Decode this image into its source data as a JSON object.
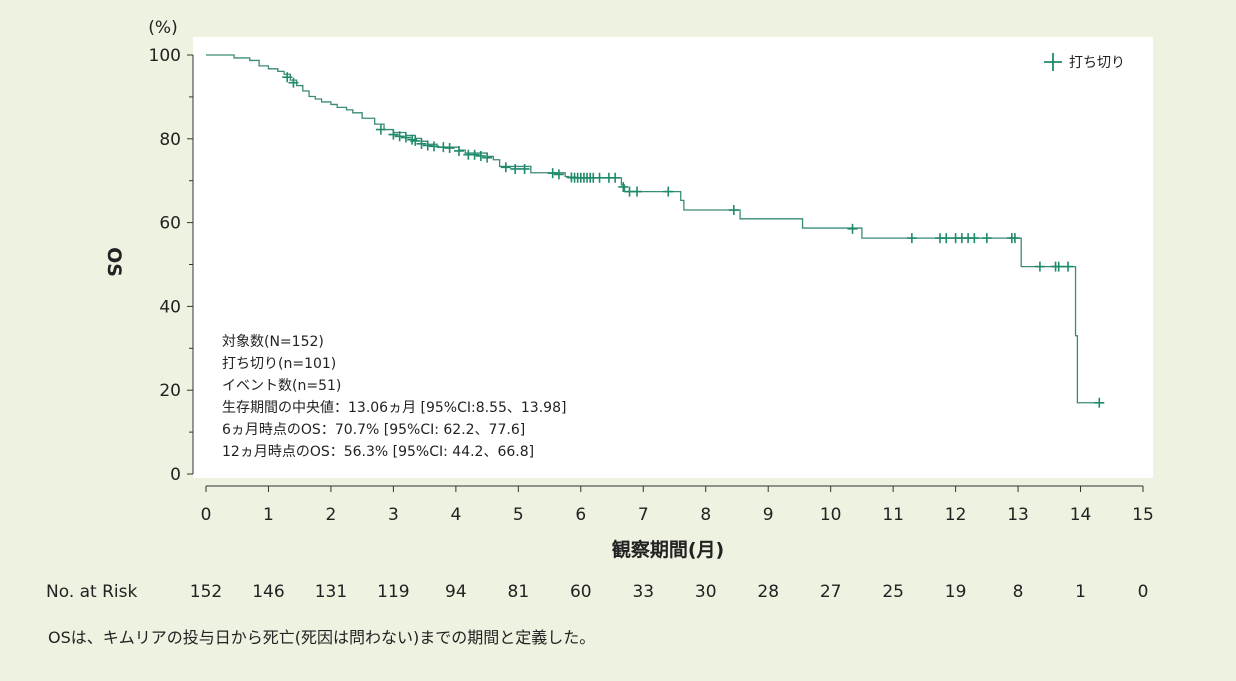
{
  "chart_data": {
    "type": "line",
    "ylabel": "OS",
    "y_unit": "(%)",
    "xlabel": "観察期間(月)",
    "xlim": [
      0,
      15
    ],
    "ylim": [
      0,
      100
    ],
    "x_ticks": [
      0,
      1,
      2,
      3,
      4,
      5,
      6,
      7,
      8,
      9,
      10,
      11,
      12,
      13,
      14,
      15
    ],
    "y_ticks": [
      0,
      20,
      40,
      60,
      80,
      100
    ],
    "legend": {
      "label": "打ち切り",
      "position": "top-right"
    },
    "series_color": "#3a8a78",
    "censor_color": "#1e8a6c",
    "series": [
      {
        "steps": [
          [
            0,
            100
          ],
          [
            0.45,
            99.3
          ],
          [
            0.7,
            98.7
          ],
          [
            0.85,
            97.4
          ],
          [
            1.0,
            96.7
          ],
          [
            1.15,
            96.1
          ],
          [
            1.25,
            95.4
          ],
          [
            1.35,
            94.0
          ],
          [
            1.45,
            92.7
          ],
          [
            1.55,
            91.4
          ],
          [
            1.65,
            90.1
          ],
          [
            1.75,
            89.5
          ],
          [
            1.85,
            88.8
          ],
          [
            2.0,
            88.2
          ],
          [
            2.1,
            87.5
          ],
          [
            2.25,
            86.9
          ],
          [
            2.35,
            86.2
          ],
          [
            2.5,
            84.9
          ],
          [
            2.7,
            83.5
          ],
          [
            2.85,
            82.2
          ],
          [
            3.0,
            81.5
          ],
          [
            3.2,
            80.8
          ],
          [
            3.35,
            80.1
          ],
          [
            3.45,
            79.4
          ],
          [
            3.55,
            78.7
          ],
          [
            3.7,
            78.0
          ],
          [
            4.05,
            77.3
          ],
          [
            4.15,
            76.6
          ],
          [
            4.5,
            75.8
          ],
          [
            4.6,
            75.0
          ],
          [
            4.7,
            73.4
          ],
          [
            5.2,
            71.9
          ],
          [
            5.55,
            71.9
          ],
          [
            5.75,
            71.0
          ],
          [
            5.8,
            70.7
          ],
          [
            6.5,
            70.7
          ],
          [
            6.65,
            69.0
          ],
          [
            6.7,
            67.4
          ],
          [
            7.25,
            67.4
          ],
          [
            7.6,
            65.3
          ],
          [
            7.65,
            63.0
          ],
          [
            8.4,
            63.0
          ],
          [
            8.55,
            60.9
          ],
          [
            9.55,
            58.7
          ],
          [
            10.5,
            56.3
          ],
          [
            13.0,
            56.3
          ],
          [
            13.05,
            49.5
          ],
          [
            13.9,
            49.5
          ],
          [
            13.92,
            33.0
          ],
          [
            13.95,
            17.0
          ],
          [
            14.3,
            17.0
          ]
        ],
        "censored": [
          [
            1.3,
            94.7
          ],
          [
            1.4,
            93.4
          ],
          [
            2.8,
            82.2
          ],
          [
            3.0,
            81.0
          ],
          [
            3.1,
            80.6
          ],
          [
            3.2,
            80.3
          ],
          [
            3.3,
            79.8
          ],
          [
            3.35,
            79.5
          ],
          [
            3.45,
            78.8
          ],
          [
            3.55,
            78.4
          ],
          [
            3.65,
            78.2
          ],
          [
            3.8,
            78.0
          ],
          [
            3.9,
            77.8
          ],
          [
            4.05,
            77.1
          ],
          [
            4.2,
            76.2
          ],
          [
            4.3,
            76.2
          ],
          [
            4.4,
            75.9
          ],
          [
            4.5,
            75.5
          ],
          [
            4.8,
            73.2
          ],
          [
            4.95,
            72.8
          ],
          [
            5.1,
            72.8
          ],
          [
            5.55,
            71.8
          ],
          [
            5.65,
            71.5
          ],
          [
            5.85,
            70.8
          ],
          [
            5.9,
            70.7
          ],
          [
            5.95,
            70.7
          ],
          [
            6.0,
            70.7
          ],
          [
            6.05,
            70.7
          ],
          [
            6.1,
            70.7
          ],
          [
            6.15,
            70.7
          ],
          [
            6.2,
            70.7
          ],
          [
            6.3,
            70.7
          ],
          [
            6.45,
            70.7
          ],
          [
            6.55,
            70.7
          ],
          [
            6.68,
            68.5
          ],
          [
            6.78,
            67.4
          ],
          [
            6.9,
            67.4
          ],
          [
            7.4,
            67.4
          ],
          [
            8.45,
            63.0
          ],
          [
            10.35,
            58.5
          ],
          [
            11.3,
            56.3
          ],
          [
            11.75,
            56.3
          ],
          [
            11.85,
            56.3
          ],
          [
            12.0,
            56.3
          ],
          [
            12.1,
            56.3
          ],
          [
            12.2,
            56.3
          ],
          [
            12.3,
            56.3
          ],
          [
            12.5,
            56.3
          ],
          [
            12.9,
            56.3
          ],
          [
            12.95,
            56.3
          ],
          [
            13.35,
            49.5
          ],
          [
            13.6,
            49.5
          ],
          [
            13.65,
            49.5
          ],
          [
            13.8,
            49.5
          ],
          [
            14.3,
            17.0
          ]
        ]
      }
    ],
    "summary_lines": [
      "対象数(N=152)",
      "打ち切り(n=101)",
      "イベント数(n=51)",
      "生存期間の中央値：13.06ヵ月 [95%CI:8.55、13.98]",
      "6ヵ月時点のOS：70.7% [95%CI: 62.2、77.6]",
      "12ヵ月時点のOS：56.3% [95%CI: 44.2、66.8]"
    ]
  },
  "risk_table": {
    "label": "No. at Risk",
    "values": [
      "152",
      "146",
      "131",
      "119",
      "94",
      "81",
      "60",
      "33",
      "30",
      "28",
      "27",
      "25",
      "19",
      "8",
      "1",
      "0"
    ]
  },
  "footnote": "OSは、キムリアの投与日から死亡(死因は問わない)までの期間と定義した。"
}
